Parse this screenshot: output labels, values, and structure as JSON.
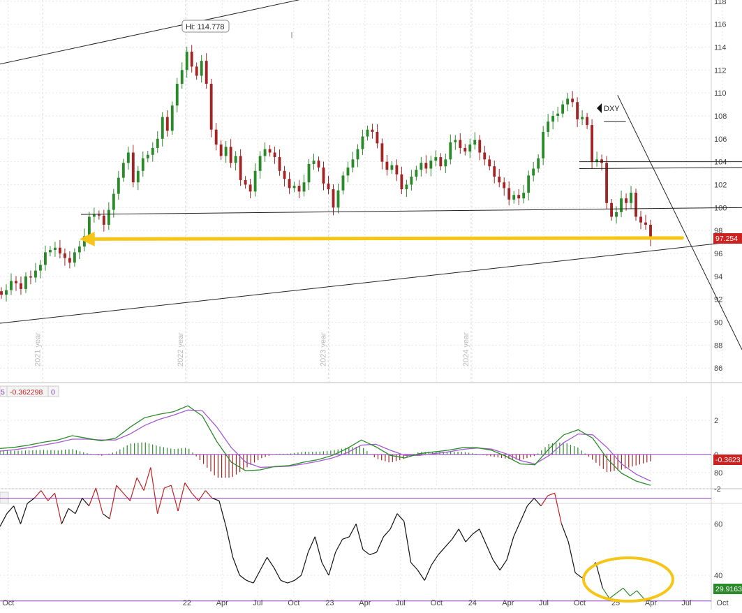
{
  "colors": {
    "up": "#2a8a2a",
    "down": "#a32424",
    "macd_line": "#2a8a2a",
    "signal_line": "#a25ad1",
    "rsi_line": "#111111",
    "rsi_overbought_color": "#c02222",
    "rsi_oversold_color": "#2a8a2a",
    "guide_line": "#8a3ab9",
    "arrow": "#f5c518",
    "price_tag": "#cc2222",
    "tag_text": "#ffffff"
  },
  "icons": {
    "dxy_marker": "left-triangle-icon"
  },
  "annotations": {
    "hi_label": "Hi: 114.778",
    "symbol_label": "DXY",
    "last_price_tag": "97.254",
    "macd_params_fragment": "5",
    "macd_value_text": "-0.362298",
    "macd_hist_text": "0",
    "macd_tag": "-0.3623",
    "rsi_tag": "29.9163"
  },
  "year_labels": [
    "2021 year",
    "2022 year",
    "2023 year",
    "2024 year"
  ],
  "chart_data": [
    {
      "type": "line",
      "panel": "price",
      "title": "",
      "xlabel": "",
      "ylabel": "",
      "y_ticks": [
        "86",
        "88",
        "90",
        "92",
        "94",
        "96",
        "98",
        "100",
        "102",
        "104",
        "106",
        "108",
        "110",
        "112",
        "114",
        "116",
        "118"
      ],
      "ylim": [
        85,
        118.5
      ],
      "grid": true,
      "x_axis": {
        "start": "2020-09-10",
        "end": "2025-11-20"
      },
      "series": [
        {
          "values_weekly_close": [
            92.4,
            92.8,
            93.6,
            93.4,
            92.9,
            94.0,
            93.9,
            94.5,
            95.0,
            96.1,
            96.3,
            96.5,
            96.0,
            95.6,
            95.2,
            96.1,
            96.6,
            97.5,
            99.2,
            99.4,
            99.3,
            98.5,
            99.8,
            101.2,
            102.6,
            103.9,
            104.8,
            102.2,
            103.2,
            104.3,
            104.6,
            105.2,
            106.0,
            107.9,
            106.7,
            108.9,
            110.8,
            112.0,
            113.6,
            112.3,
            111.5,
            112.8,
            110.8,
            106.8,
            105.5,
            104.5,
            105.3,
            103.9,
            104.5,
            102.4,
            102.0,
            101.4,
            103.2,
            104.5,
            105.1,
            104.8,
            104.4,
            103.2,
            102.5,
            101.7,
            101.9,
            101.4,
            102.2,
            103.8,
            104.1,
            103.5,
            102.1,
            101.6,
            100.0,
            101.5,
            102.8,
            103.5,
            104.2,
            105.1,
            106.2,
            106.8,
            106.6,
            105.6,
            104.0,
            103.3,
            103.7,
            102.9,
            101.6,
            102.0,
            102.7,
            103.3,
            103.9,
            103.4,
            104.1,
            104.4,
            103.6,
            104.2,
            105.7,
            105.9,
            105.2,
            104.9,
            105.5,
            105.9,
            104.8,
            104.2,
            103.6,
            102.7,
            102.2,
            101.7,
            100.7,
            101.1,
            100.8,
            101.3,
            102.8,
            103.4,
            104.3,
            106.6,
            107.5,
            108.0,
            108.2,
            109.0,
            109.5,
            109.2,
            107.7,
            107.9,
            107.2,
            104.0,
            104.2,
            103.9,
            100.4,
            99.2,
            99.6,
            100.8,
            100.4,
            101.3,
            99.2,
            98.7,
            98.5,
            97.3
          ]
        }
      ],
      "annotations": [
        {
          "text": "Hi: 114.778",
          "date": "2022-09-26",
          "value": 114.778
        },
        {
          "text": "97.254",
          "value": 97.254
        }
      ],
      "trendlines": [
        {
          "from": [
            "2020-09-07",
            112.5
          ],
          "to": [
            "2023-01-15",
            118.8
          ]
        },
        {
          "from": [
            "2020-09-07",
            89.9
          ],
          "to": [
            "2025-11-20",
            97.1
          ]
        },
        {
          "from": [
            "2021-04-05",
            99.4
          ],
          "to": [
            "2025-11-20",
            100.0
          ]
        },
        {
          "from": [
            "2024-09-30",
            104.0
          ],
          "to": [
            "2025-11-20",
            104.0
          ]
        },
        {
          "from": [
            "2024-09-30",
            103.4
          ],
          "to": [
            "2025-11-20",
            103.5
          ]
        },
        {
          "from": [
            "2024-12-02",
            107.5
          ],
          "to": [
            "2025-01-27",
            107.5
          ]
        },
        {
          "from": [
            "2025-01-06",
            109.8
          ],
          "to": [
            "2025-11-20",
            87.6
          ]
        }
      ],
      "arrow": {
        "from_date": "2025-06-20",
        "to_date": "2021-04-01",
        "value": 97.35
      }
    },
    {
      "type": "line",
      "panel": "macd",
      "title": "",
      "y_ticks": [
        "2",
        "0",
        "-2"
      ],
      "ylim": [
        -2.0,
        3.2
      ],
      "series": [
        {
          "name": "",
          "values": [
            0.35,
            0.42,
            0.55,
            0.72,
            0.85,
            1.1,
            0.95,
            0.8,
            0.95,
            1.6,
            2.15,
            2.35,
            2.5,
            2.85,
            2.25,
            0.75,
            -0.45,
            -0.95,
            -0.9,
            -0.7,
            -0.65,
            -0.45,
            -0.3,
            -0.05,
            0.35,
            0.85,
            0.45,
            -0.05,
            -0.2,
            0.05,
            0.15,
            0.25,
            0.4,
            0.4,
            0.25,
            -0.1,
            -0.55,
            -0.6,
            0.35,
            1.15,
            1.45,
            0.95,
            -0.25,
            -1.1,
            -1.55,
            -1.8
          ]
        },
        {
          "name": "",
          "values": [
            0.2,
            0.28,
            0.4,
            0.55,
            0.7,
            0.9,
            0.9,
            0.85,
            0.85,
            1.2,
            1.7,
            2.05,
            2.3,
            2.6,
            2.55,
            1.6,
            0.4,
            -0.45,
            -0.75,
            -0.72,
            -0.68,
            -0.55,
            -0.4,
            -0.2,
            0.1,
            0.55,
            0.6,
            0.25,
            -0.05,
            -0.05,
            0.05,
            0.15,
            0.3,
            0.38,
            0.32,
            0.05,
            -0.35,
            -0.55,
            -0.05,
            0.7,
            1.2,
            1.15,
            0.4,
            -0.55,
            -1.15,
            -1.55
          ]
        }
      ]
    },
    {
      "type": "line",
      "panel": "rsi",
      "title": "",
      "y_ticks": [
        "80",
        "60",
        "40"
      ],
      "ylim": [
        28,
        88
      ],
      "guide_levels": [
        70,
        30
      ],
      "series": [
        {
          "name": "",
          "values": [
            59,
            64,
            67,
            60,
            68,
            70,
            73,
            69,
            72,
            60,
            66,
            64,
            70,
            67,
            74,
            64,
            62,
            75,
            72,
            69,
            78,
            73,
            82,
            64,
            74,
            75,
            65,
            76,
            72,
            69,
            73,
            70,
            69,
            59,
            47,
            40,
            38,
            37,
            42,
            47,
            43,
            38,
            37,
            38,
            40,
            49,
            55,
            45,
            40,
            49,
            54,
            55,
            60,
            50,
            48,
            49,
            55,
            58,
            64,
            61,
            45,
            42,
            38,
            44,
            48,
            51,
            54,
            58,
            53,
            56,
            58,
            52,
            46,
            42,
            46,
            55,
            61,
            67,
            70,
            67,
            71,
            72,
            60,
            53,
            41,
            39,
            42,
            45,
            35,
            31,
            33,
            35,
            32,
            34,
            31,
            30
          ]
        }
      ]
    }
  ],
  "x_axis_labels": [
    "Oct",
    "22",
    "Apr",
    "Jul",
    "Oct",
    "23",
    "Apr",
    "Jul",
    "Oct",
    "24",
    "Apr",
    "Jul",
    "Oct",
    "25",
    "Apr",
    "Jul",
    "Oct"
  ]
}
